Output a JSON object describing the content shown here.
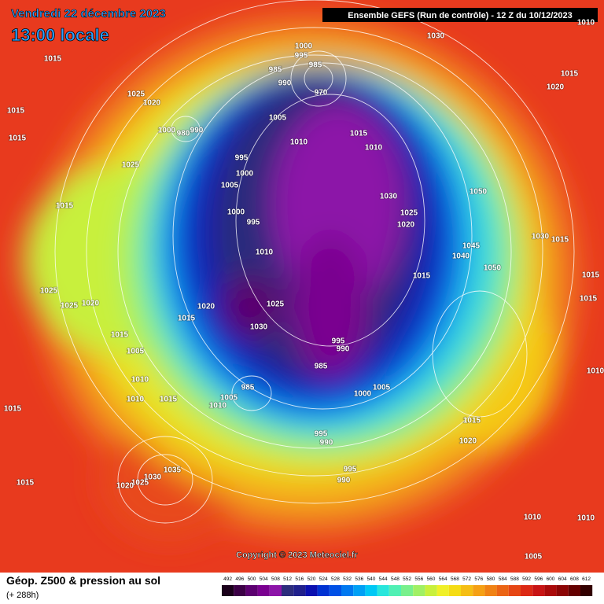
{
  "header": {
    "title": "Vendredi 22 décembre 2023",
    "time": "13:00 locale",
    "run": "Ensemble GEFS  (Run de contrôle)  - 12 Z du 10/12/2023"
  },
  "map": {
    "pressure_labels": [
      1015,
      1025,
      1020,
      1015,
      1000,
      980,
      990,
      1000,
      995,
      985,
      985,
      990,
      970,
      1005,
      1010,
      1015,
      1010,
      995,
      1000,
      1005,
      1025,
      1015,
      1000,
      995,
      1030,
      1025,
      1020,
      1050,
      1030,
      1020,
      1015,
      1030,
      1015,
      1045,
      1040,
      1050,
      1015,
      1015,
      1015,
      1010,
      1025,
      1025,
      1020,
      1020,
      1015,
      1025,
      1030,
      995,
      990,
      985,
      1000,
      1005,
      1015,
      1005,
      1010,
      1010,
      1015,
      1010,
      1005,
      985,
      1015,
      995,
      990,
      995,
      990,
      1015,
      1020,
      1015,
      1035,
      1030,
      1025,
      1020,
      1010,
      1005,
      1010,
      1010,
      1015,
      1010
    ]
  },
  "copyright": "Copyright © 2023 Meteociel.fr",
  "footer": {
    "title": "Géop. Z500 & pression au sol",
    "lead": "(+ 288h)"
  },
  "scale": {
    "labels": [
      492,
      496,
      500,
      504,
      508,
      512,
      516,
      520,
      524,
      528,
      532,
      536,
      540,
      544,
      548,
      552,
      556,
      560,
      564,
      568,
      572,
      576,
      580,
      584,
      588,
      592,
      596,
      600,
      604,
      608,
      612
    ],
    "colors": [
      "#1a001a",
      "#3c0046",
      "#5c0070",
      "#7a0090",
      "#8c14a8",
      "#2c2c7c",
      "#20208c",
      "#0a10b0",
      "#0032d2",
      "#0050e6",
      "#0078f0",
      "#00a0f5",
      "#00c8f5",
      "#28e6dc",
      "#50f0b4",
      "#78f08c",
      "#a0f064",
      "#c8f03c",
      "#f0f028",
      "#f5dc14",
      "#f5be14",
      "#f5a014",
      "#f08214",
      "#eb6414",
      "#e64614",
      "#dc2814",
      "#c81414",
      "#aa0a0a",
      "#8c0505",
      "#640000",
      "#320000"
    ]
  }
}
